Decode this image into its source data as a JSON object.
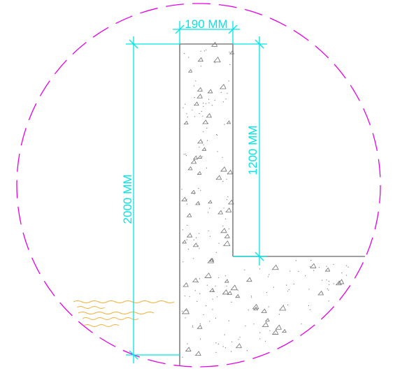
{
  "drawing": {
    "dim_width_label": "190 MM",
    "dim_total_height_label": "2000 MM",
    "dim_upper_height_label": "1200 MM"
  },
  "colors": {
    "background": "#ffffff",
    "detail_circle": "#e600e6",
    "dimension": "#00e5e5",
    "concrete_outline": "#808080",
    "aggregate": "#707070",
    "soil_hatch": "#f0b040"
  }
}
